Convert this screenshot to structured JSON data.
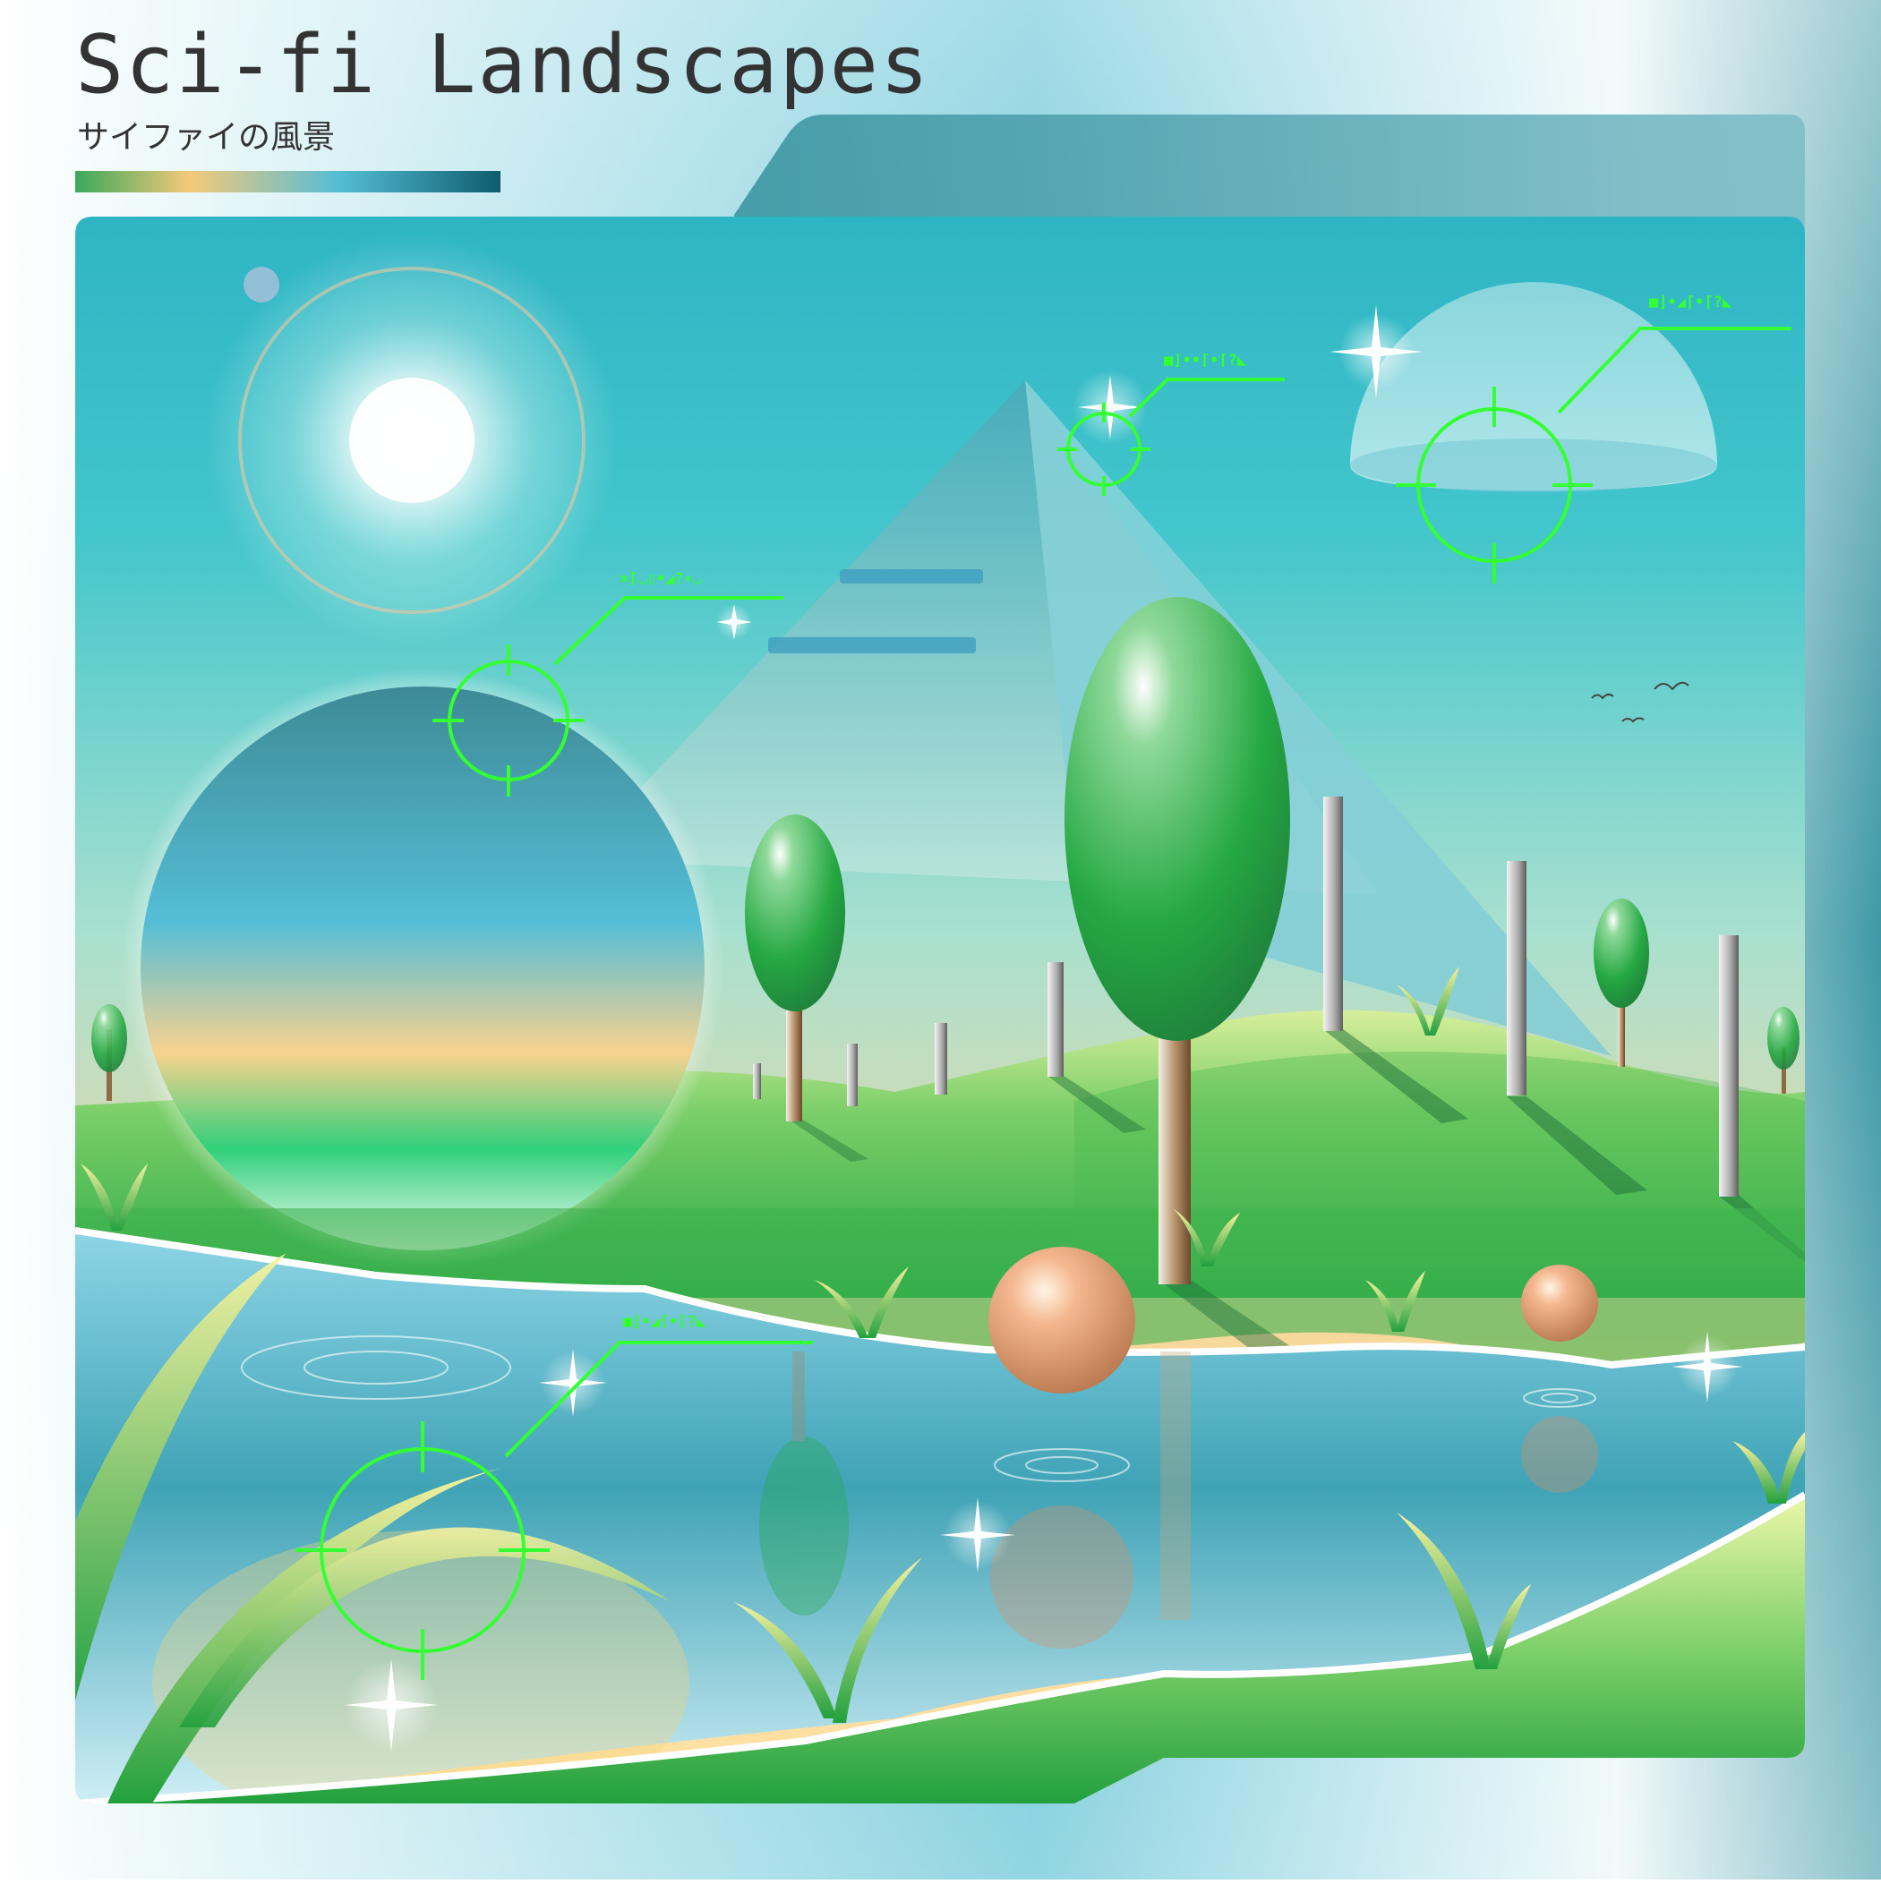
{
  "header": {
    "title": "Sci-fi Landscapes",
    "subtitle": "サイファイの風景",
    "accent_bar_colors": [
      "#3aa85c",
      "#f4c97a",
      "#55bdd4",
      "#0e5d6e"
    ]
  },
  "hud": {
    "color": "#33ff33",
    "targets": [
      {
        "name": "target-portal",
        "label": "×⌈◡▯•◢?▾◡"
      },
      {
        "name": "target-pyramid-peak",
        "label": "■⌋••⌈•⌈?◣"
      },
      {
        "name": "target-dome",
        "label": "■⌋•◢⌈•⌈?◣"
      },
      {
        "name": "target-lake",
        "label": "■⌋•◢⌈•⌈?◣"
      }
    ]
  },
  "scene": {
    "elements": [
      "sun",
      "glass-pyramid",
      "portal-sphere",
      "floating-dome",
      "trees",
      "pillars",
      "lake",
      "orbs",
      "grass",
      "birds",
      "sparkles"
    ],
    "palette": {
      "sky_top": "#2fb7c6",
      "sky_horizon": "#fbd79a",
      "grass": "#27a844",
      "water": "#58bfd6",
      "orb": "#e8956a",
      "frame": "#3a9aa8"
    }
  }
}
